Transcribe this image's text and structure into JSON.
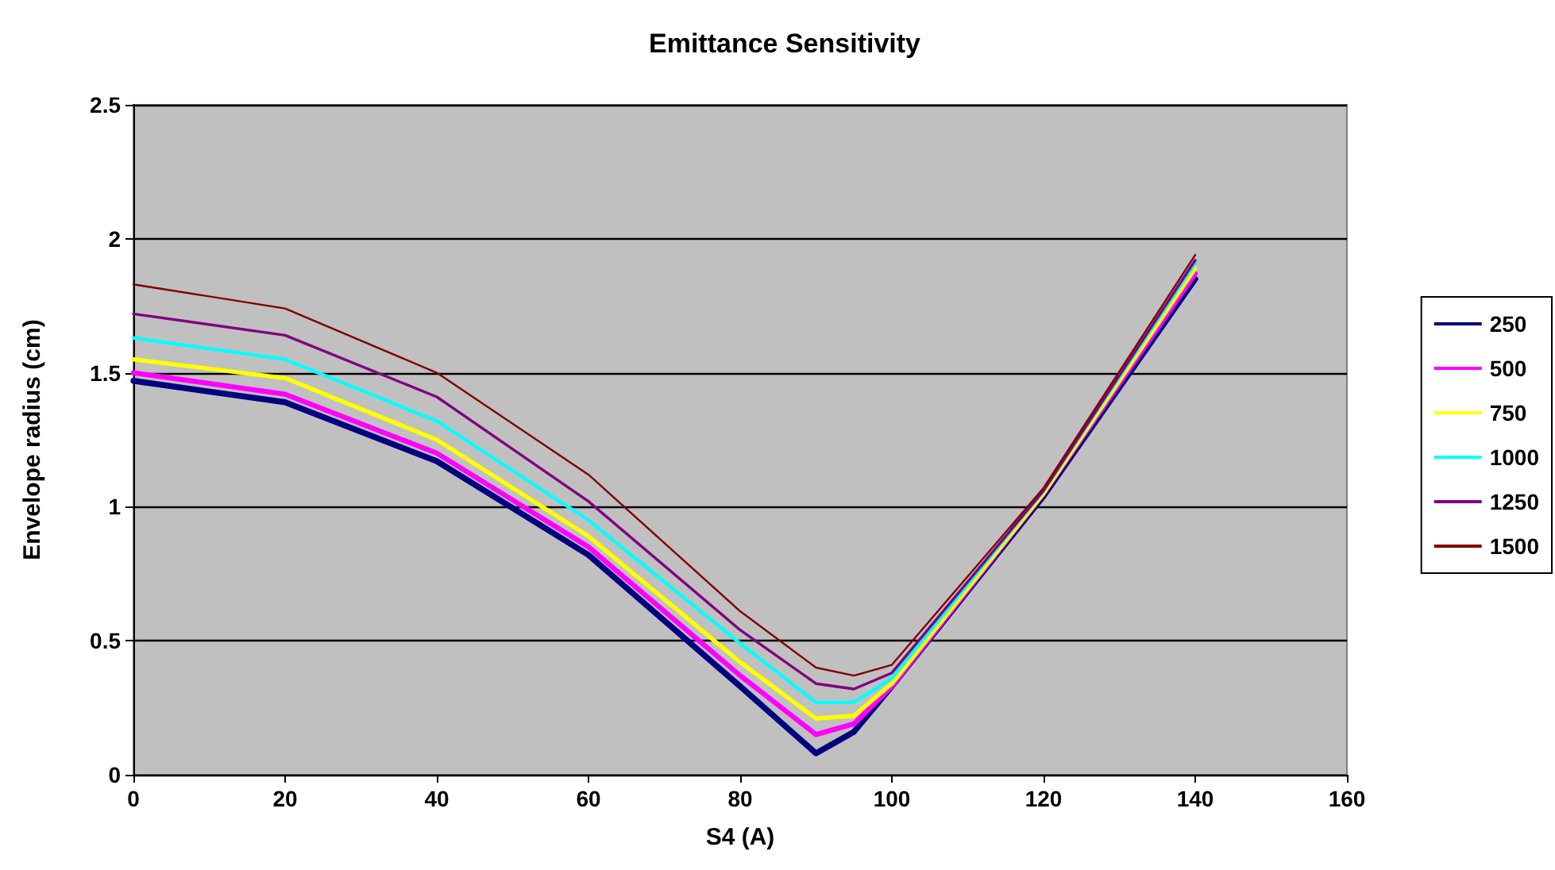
{
  "chart_data": {
    "type": "line",
    "title": "Emittance Sensitivity",
    "xlabel": "S4 (A)",
    "ylabel": "Envelope radius (cm)",
    "x": [
      0,
      20,
      40,
      60,
      80,
      90,
      95,
      100,
      120,
      140
    ],
    "series": [
      {
        "name": "250",
        "color": "#000080",
        "values": [
          1.47,
          1.39,
          1.17,
          0.82,
          0.33,
          0.08,
          0.16,
          0.33,
          1.04,
          1.85
        ]
      },
      {
        "name": "500",
        "color": "#ff00ff",
        "values": [
          1.5,
          1.42,
          1.2,
          0.85,
          0.37,
          0.15,
          0.19,
          0.33,
          1.05,
          1.87
        ]
      },
      {
        "name": "750",
        "color": "#ffff00",
        "values": [
          1.55,
          1.48,
          1.25,
          0.89,
          0.42,
          0.21,
          0.22,
          0.34,
          1.05,
          1.89
        ]
      },
      {
        "name": "1000",
        "color": "#00ffff",
        "values": [
          1.63,
          1.55,
          1.32,
          0.95,
          0.49,
          0.27,
          0.27,
          0.36,
          1.06,
          1.91
        ]
      },
      {
        "name": "1250",
        "color": "#800080",
        "values": [
          1.72,
          1.64,
          1.41,
          1.02,
          0.54,
          0.34,
          0.32,
          0.38,
          1.06,
          1.92
        ]
      },
      {
        "name": "1500",
        "color": "#800000",
        "values": [
          1.83,
          1.74,
          1.5,
          1.12,
          0.61,
          0.4,
          0.37,
          0.41,
          1.07,
          1.94
        ]
      }
    ],
    "xlim": [
      0,
      160
    ],
    "xticks": [
      0,
      20,
      40,
      60,
      80,
      100,
      120,
      140,
      160
    ],
    "ylim": [
      0,
      2.5
    ],
    "yticks": [
      0,
      0.5,
      1,
      1.5,
      2,
      2.5
    ],
    "grid": "y",
    "legend": "right",
    "marker": "none",
    "line_style": "solid"
  }
}
